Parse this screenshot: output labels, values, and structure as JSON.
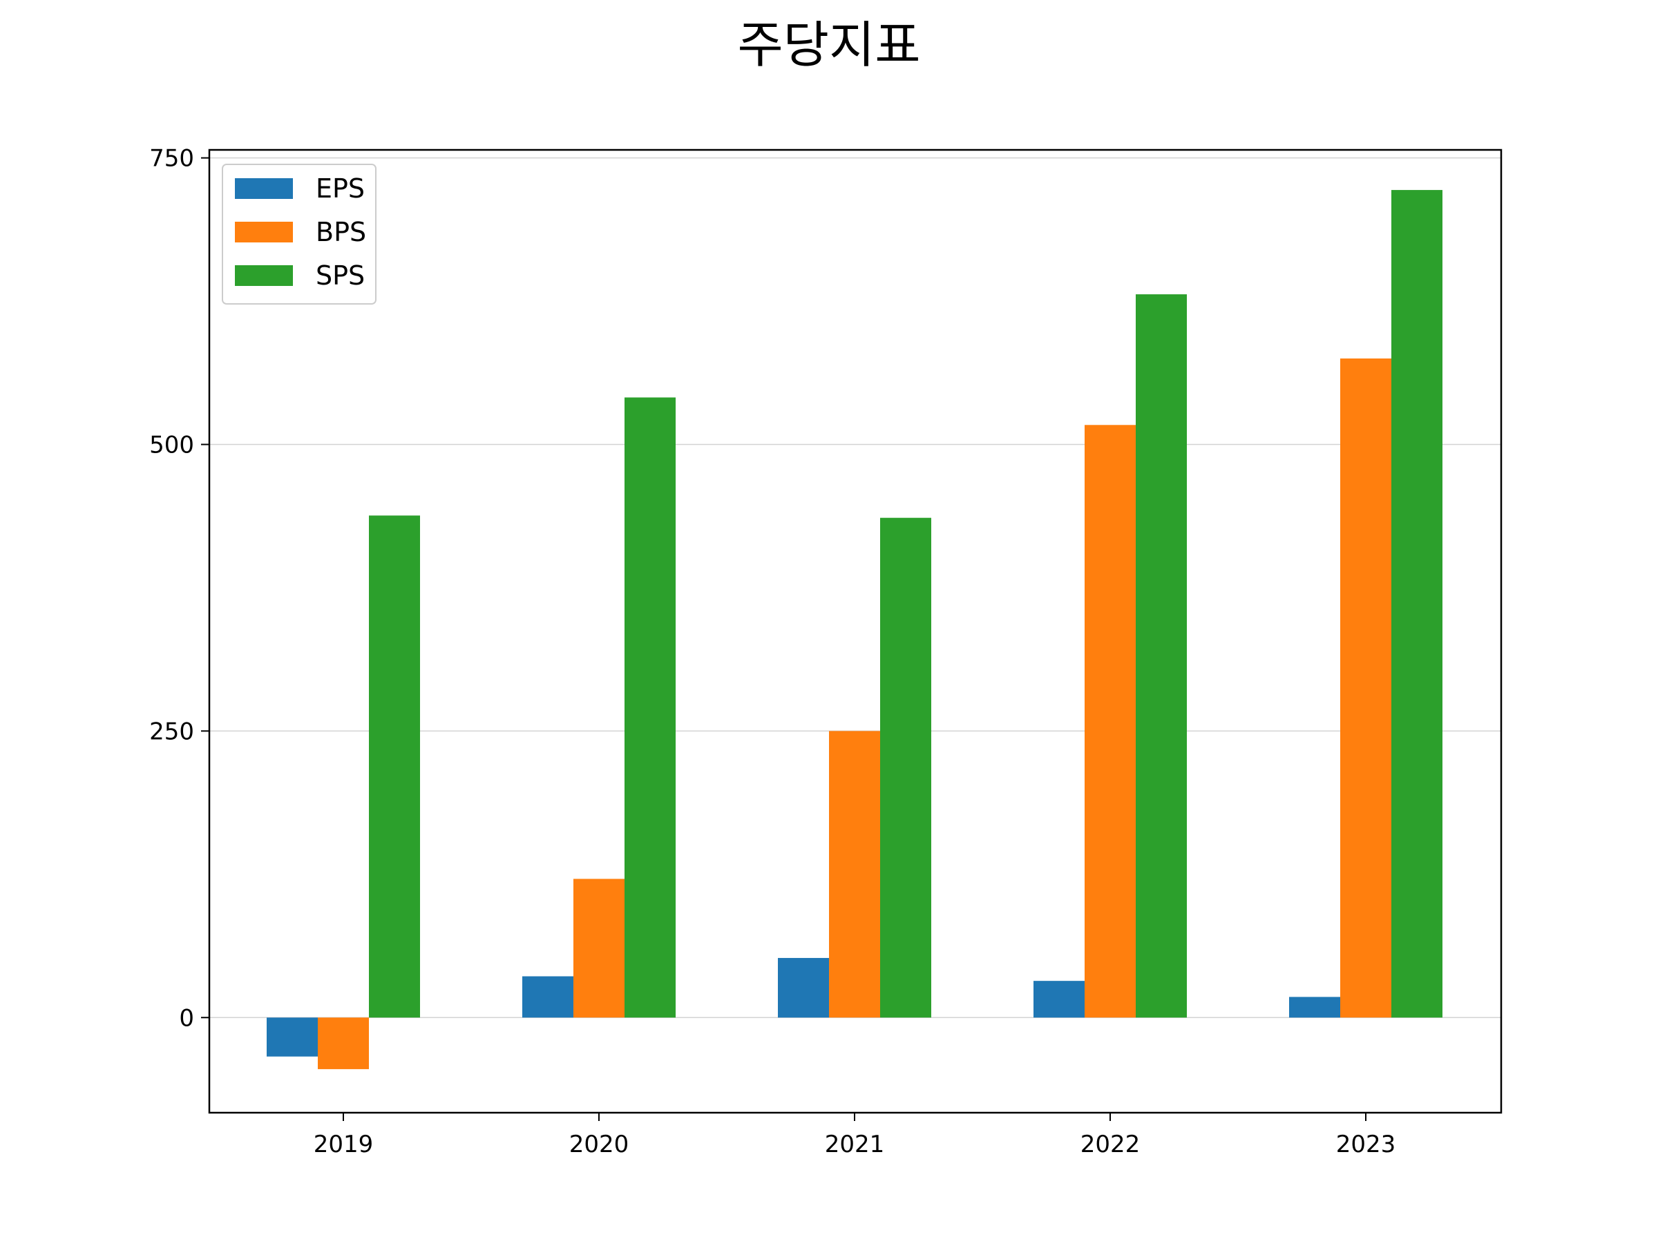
{
  "chart_data": {
    "type": "bar",
    "title": "주당지표",
    "xlabel": "",
    "ylabel": "",
    "categories": [
      "2019",
      "2020",
      "2021",
      "2022",
      "2023"
    ],
    "series": [
      {
        "name": "EPS",
        "color": "#1f77b4",
        "values": [
          -34,
          36,
          52,
          32,
          18
        ]
      },
      {
        "name": "BPS",
        "color": "#ff7f0e",
        "values": [
          -45,
          121,
          250,
          517,
          575
        ]
      },
      {
        "name": "SPS",
        "color": "#2ca02c",
        "values": [
          438,
          541,
          436,
          631,
          722
        ]
      }
    ],
    "ylim": [
      -83,
      757
    ],
    "yticks": [
      0,
      250,
      500,
      750
    ],
    "grid": "horizontal",
    "legend_position": "top-left"
  }
}
